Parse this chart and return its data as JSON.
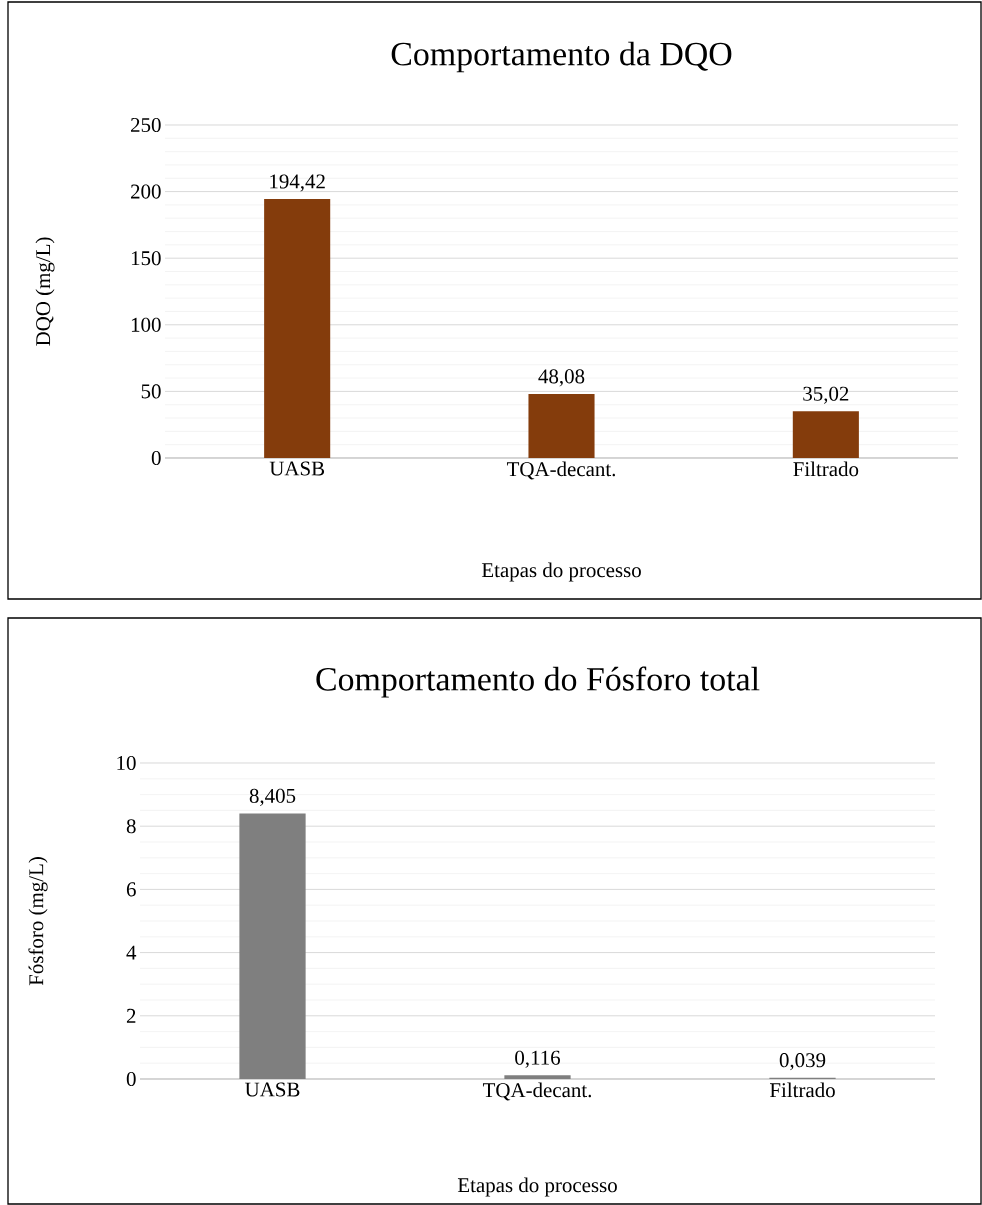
{
  "chart_data": [
    {
      "type": "bar",
      "title": "Comportamento da DQO",
      "xlabel": "Etapas do processo",
      "ylabel": "DQO (mg/L)",
      "categories": [
        "UASB",
        "TQA-decant.",
        "Filtrado"
      ],
      "values": [
        194.42,
        48.08,
        35.02
      ],
      "value_labels": [
        "194,42",
        "48,08",
        "35,02"
      ],
      "color": "#843c0c",
      "ylim": [
        0,
        250
      ],
      "yticks": [
        0,
        50,
        100,
        150,
        200,
        250
      ],
      "grid": "y"
    },
    {
      "type": "bar",
      "title": "Comportamento do Fósforo total",
      "xlabel": "Etapas do processo",
      "ylabel": "Fósforo (mg/L)",
      "categories": [
        "UASB",
        "TQA-decant.",
        "Filtrado"
      ],
      "values": [
        8.405,
        0.116,
        0.039
      ],
      "value_labels": [
        "8,405",
        "0,116",
        "0,039"
      ],
      "color": "#7f7f7f",
      "ylim": [
        0,
        10
      ],
      "yticks": [
        0,
        2,
        4,
        6,
        8,
        10
      ],
      "grid": "y"
    }
  ]
}
